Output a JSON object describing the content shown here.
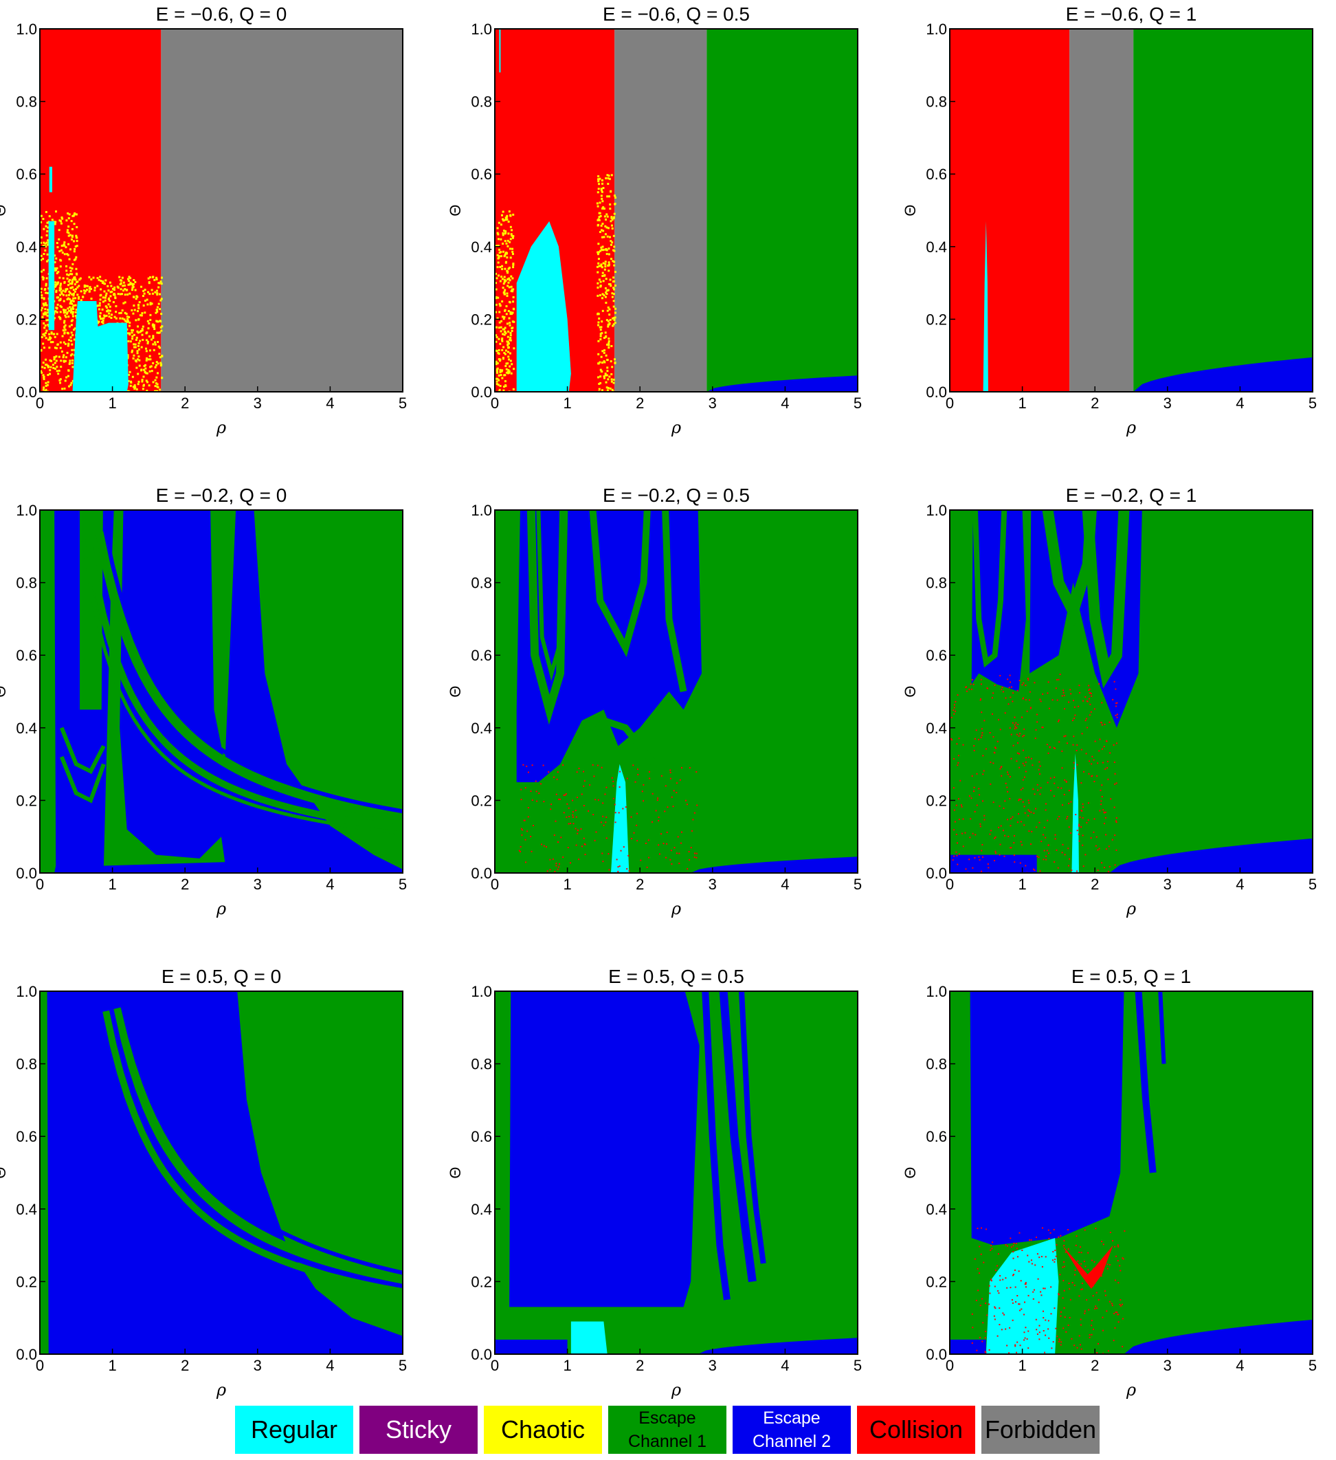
{
  "colors": {
    "regular": "#00ffff",
    "sticky": "#800080",
    "chaotic": "#ffff00",
    "escape1": "#009900",
    "escape2": "#0000ee",
    "collision": "#ff0000",
    "forbidden": "#808080"
  },
  "chart_data": [
    {
      "type": "heatmap",
      "title": "E = −0.6,  Q = 0",
      "xlabel": "ρ",
      "ylabel": "Θ",
      "xlim": [
        0,
        5
      ],
      "ylim": [
        0,
        1
      ],
      "regions": [
        {
          "class": "collision",
          "rho": [
            0,
            1.67
          ]
        },
        {
          "class": "forbidden",
          "rho": [
            1.67,
            5
          ]
        }
      ]
    },
    {
      "type": "heatmap",
      "title": "E = −0.6,  Q = 0.5",
      "xlabel": "ρ",
      "ylabel": "Θ",
      "xlim": [
        0,
        5
      ],
      "ylim": [
        0,
        1
      ],
      "regions": [
        {
          "class": "collision",
          "rho": [
            0,
            1.65
          ]
        },
        {
          "class": "forbidden",
          "rho": [
            1.65,
            2.92
          ]
        },
        {
          "class": "escape1",
          "rho": [
            2.92,
            5
          ]
        },
        {
          "class": "escape2",
          "note": "thin wedge near Θ=0"
        }
      ]
    },
    {
      "type": "heatmap",
      "title": "E = −0.6,  Q = 1",
      "xlabel": "ρ",
      "ylabel": "Θ",
      "xlim": [
        0,
        5
      ],
      "ylim": [
        0,
        1
      ],
      "regions": [
        {
          "class": "collision",
          "rho": [
            0,
            1.65
          ]
        },
        {
          "class": "forbidden",
          "rho": [
            1.65,
            2.53
          ]
        },
        {
          "class": "escape1",
          "rho": [
            2.53,
            5
          ]
        },
        {
          "class": "escape2",
          "note": "thin wedge near Θ=0"
        }
      ]
    },
    {
      "type": "heatmap",
      "title": "E = −0.2,  Q = 0",
      "xlabel": "ρ",
      "ylabel": "Θ",
      "xlim": [
        0,
        5
      ],
      "ylim": [
        0,
        1
      ]
    },
    {
      "type": "heatmap",
      "title": "E = −0.2,  Q = 0.5",
      "xlabel": "ρ",
      "ylabel": "Θ",
      "xlim": [
        0,
        5
      ],
      "ylim": [
        0,
        1
      ]
    },
    {
      "type": "heatmap",
      "title": "E = −0.2,  Q = 1",
      "xlabel": "ρ",
      "ylabel": "Θ",
      "xlim": [
        0,
        5
      ],
      "ylim": [
        0,
        1
      ]
    },
    {
      "type": "heatmap",
      "title": "E = 0.5,  Q = 0",
      "xlabel": "ρ",
      "ylabel": "Θ",
      "xlim": [
        0,
        5
      ],
      "ylim": [
        0,
        1
      ]
    },
    {
      "type": "heatmap",
      "title": "E = 0.5,  Q = 0.5",
      "xlabel": "ρ",
      "ylabel": "Θ",
      "xlim": [
        0,
        5
      ],
      "ylim": [
        0,
        1
      ]
    },
    {
      "type": "heatmap",
      "title": "E = 0.5,  Q = 1",
      "xlabel": "ρ",
      "ylabel": "Θ",
      "xlim": [
        0,
        5
      ],
      "ylim": [
        0,
        1
      ]
    }
  ],
  "ticks": {
    "x": [
      "0",
      "1",
      "2",
      "3",
      "4",
      "5"
    ],
    "y": [
      "0.0",
      "0.2",
      "0.4",
      "0.6",
      "0.8",
      "1.0"
    ]
  },
  "legend": [
    {
      "key": "regular",
      "label": "Regular",
      "text_color": "#000000"
    },
    {
      "key": "sticky",
      "label": "Sticky",
      "text_color": "#ffffff"
    },
    {
      "key": "chaotic",
      "label": "Chaotic",
      "text_color": "#000000"
    },
    {
      "key": "escape1",
      "label_line1": "Escape",
      "label_line2": "Channel 1",
      "text_color": "#000000"
    },
    {
      "key": "escape2",
      "label_line1": "Escape",
      "label_line2": "Channel 2",
      "text_color": "#ffffff"
    },
    {
      "key": "collision",
      "label": "Collision",
      "text_color": "#000000"
    },
    {
      "key": "forbidden",
      "label": "Forbidden",
      "text_color": "#000000"
    }
  ]
}
